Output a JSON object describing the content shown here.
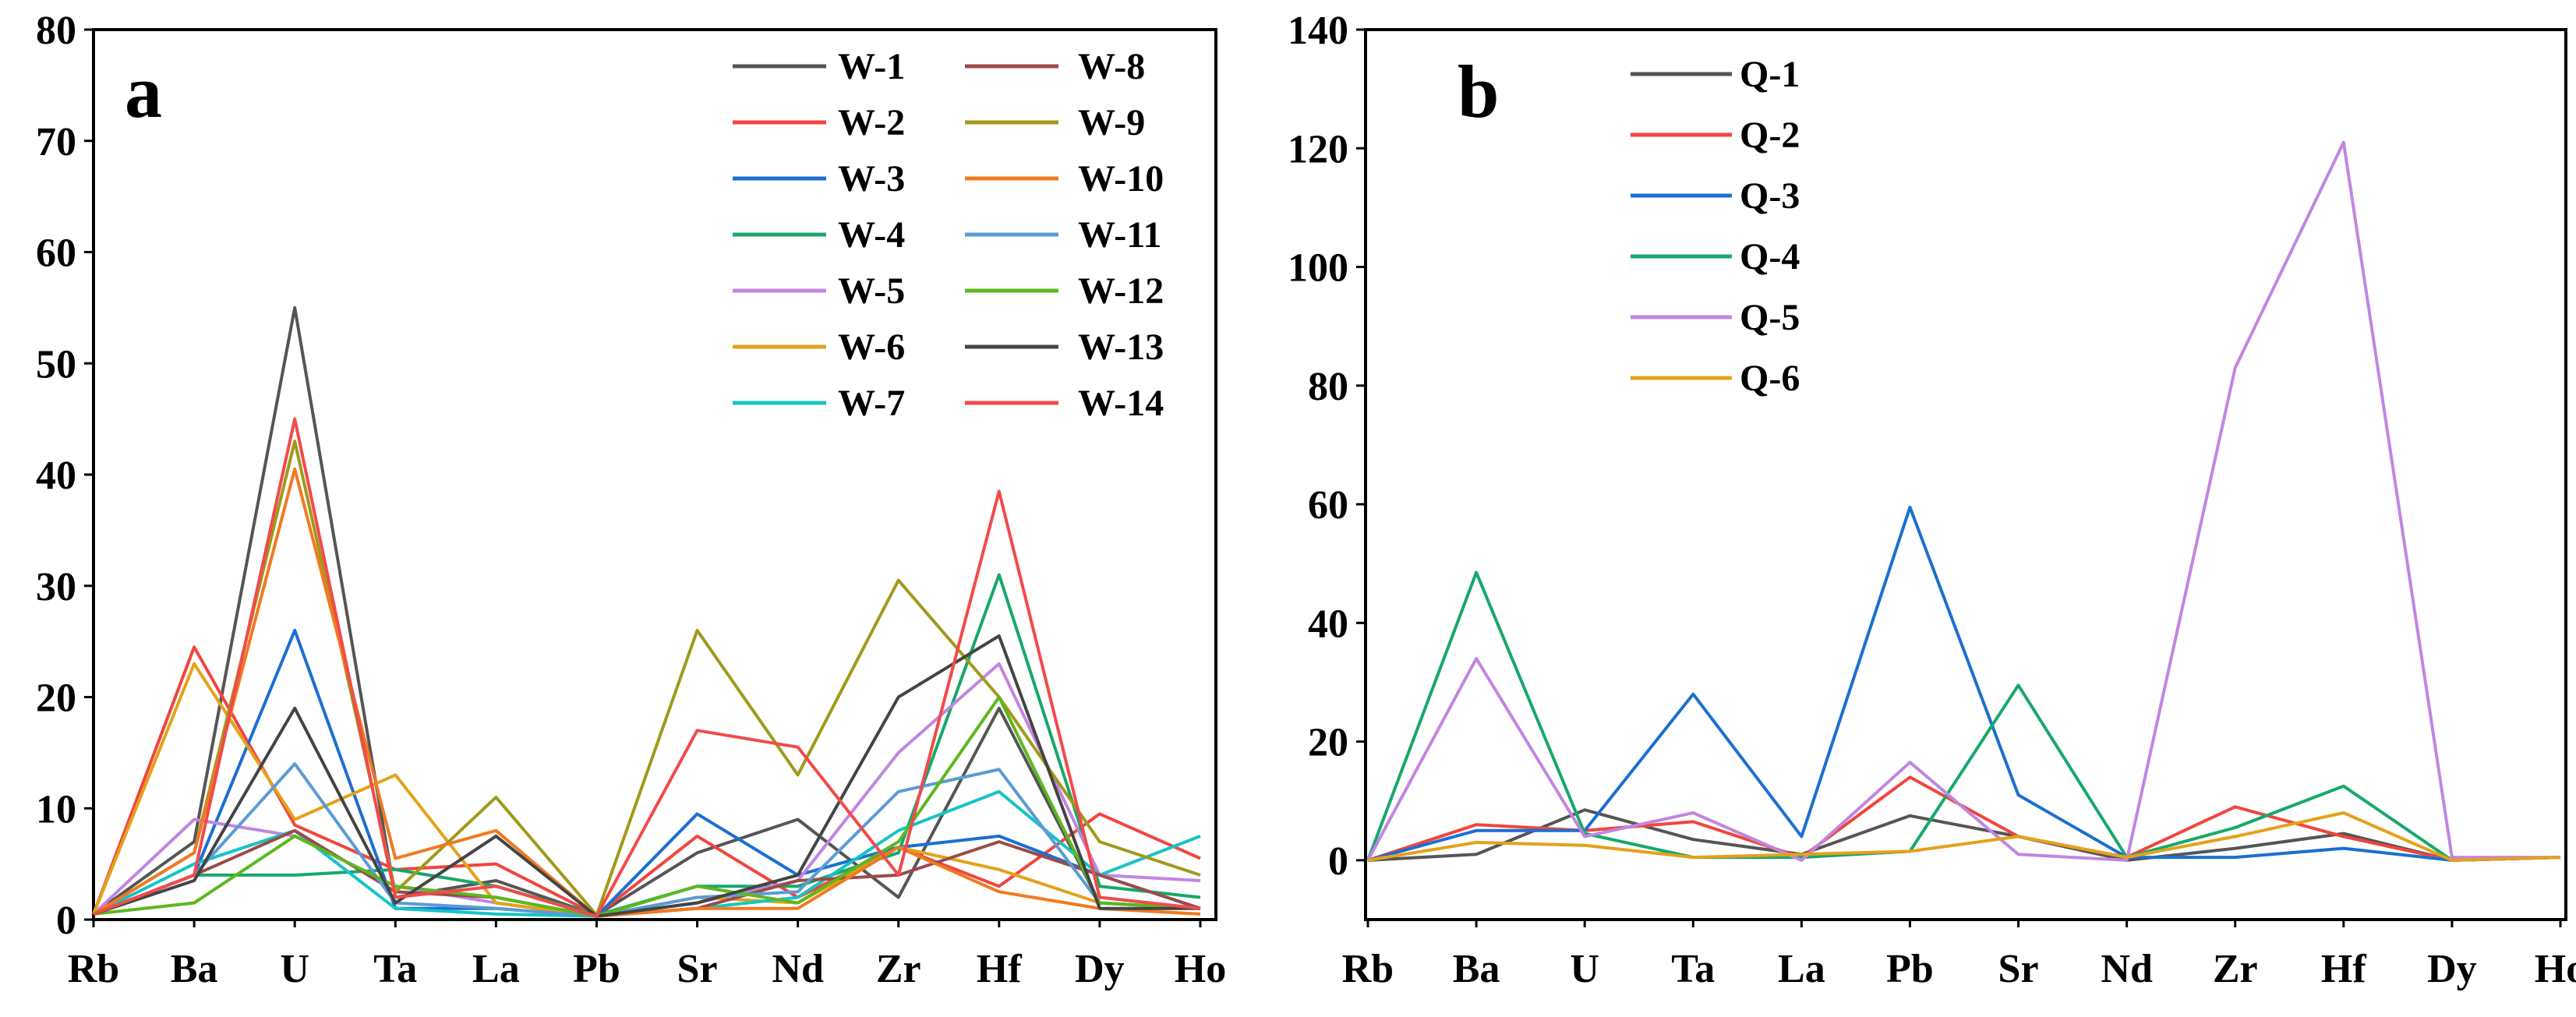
{
  "chart_data": [
    {
      "type": "line",
      "panel_label": "a",
      "categories": [
        "Rb",
        "Ba",
        "U",
        "Ta",
        "La",
        "Pb",
        "Sr",
        "Nd",
        "Zr",
        "Hf",
        "Dy",
        "Ho"
      ],
      "ylim": [
        0,
        80
      ],
      "yticks": [
        0,
        10,
        20,
        30,
        40,
        50,
        60,
        70,
        80
      ],
      "xlabel": "",
      "ylabel": "",
      "title": "",
      "legend_position": "top-right",
      "series": [
        {
          "name": "W-1",
          "color": "#555555",
          "values": [
            0.5,
            7,
            55,
            2,
            3.5,
            0.4,
            6,
            9,
            2,
            19,
            1.5,
            1
          ]
        },
        {
          "name": "W-2",
          "color": "#f0453e",
          "values": [
            0.5,
            24.5,
            8.5,
            4.5,
            5,
            0.4,
            7.5,
            2,
            6.5,
            3,
            9.5,
            5.5
          ]
        },
        {
          "name": "W-3",
          "color": "#1b6fd1",
          "values": [
            0.5,
            4,
            26,
            1,
            1,
            0.3,
            9.5,
            4,
            6.5,
            7.5,
            4,
            1
          ]
        },
        {
          "name": "W-4",
          "color": "#17a86b",
          "values": [
            0.5,
            4,
            4,
            4.5,
            3,
            0.4,
            3,
            3,
            6,
            31,
            3,
            2
          ]
        },
        {
          "name": "W-5",
          "color": "#c285e0",
          "values": [
            0.5,
            9,
            7.5,
            3,
            1.5,
            0.3,
            1.5,
            3.5,
            15,
            23,
            4,
            3.5
          ]
        },
        {
          "name": "W-6",
          "color": "#e3a21a",
          "values": [
            0.5,
            23,
            9,
            13,
            1.5,
            0.3,
            2,
            1.5,
            6.5,
            4.5,
            1.5,
            1
          ]
        },
        {
          "name": "W-7",
          "color": "#16c4c4",
          "values": [
            0.5,
            5,
            8,
            1,
            0.5,
            0.3,
            1,
            2,
            8,
            11.5,
            4,
            7.5
          ]
        },
        {
          "name": "W-8",
          "color": "#9b4a4a",
          "values": [
            0.5,
            4,
            8,
            2.5,
            2,
            0.3,
            1,
            3.5,
            4,
            7,
            4,
            1
          ]
        },
        {
          "name": "W-9",
          "color": "#9f9a1a",
          "values": [
            0.5,
            6,
            43,
            2.5,
            11,
            0.4,
            26,
            13,
            30.5,
            20,
            7,
            4
          ]
        },
        {
          "name": "W-10",
          "color": "#f07a20",
          "values": [
            0.5,
            6,
            40.5,
            5.5,
            8,
            0.3,
            1,
            1,
            6.5,
            2.5,
            1,
            0.5
          ]
        },
        {
          "name": "W-11",
          "color": "#5b9bd5",
          "values": [
            0.5,
            4,
            14,
            1.5,
            1,
            0.3,
            2,
            2.5,
            11.5,
            13.5,
            1.5,
            1
          ]
        },
        {
          "name": "W-12",
          "color": "#5cb81e",
          "values": [
            0.5,
            1.5,
            7.5,
            3,
            2,
            0.3,
            3,
            1.5,
            7,
            20,
            1.5,
            1
          ]
        },
        {
          "name": "W-13",
          "color": "#444444",
          "values": [
            0.5,
            3.5,
            19,
            1.5,
            7.5,
            0.3,
            1.5,
            4,
            20,
            25.5,
            1,
            1
          ]
        },
        {
          "name": "W-14",
          "color": "#f24a4a",
          "values": [
            0.5,
            4,
            45,
            2,
            3,
            0.3,
            17,
            15.5,
            4,
            38.5,
            2,
            1
          ]
        }
      ]
    },
    {
      "type": "line",
      "panel_label": "b",
      "categories": [
        "Rb",
        "Ba",
        "U",
        "Ta",
        "La",
        "Pb",
        "Sr",
        "Nd",
        "Zr",
        "Hf",
        "Dy",
        "Ho"
      ],
      "ylim": [
        -10,
        140
      ],
      "yticks": [
        0,
        20,
        40,
        60,
        80,
        100,
        120,
        140
      ],
      "xlabel": "",
      "ylabel": "",
      "title": "",
      "legend_position": "top-left",
      "series": [
        {
          "name": "Q-1",
          "color": "#555555",
          "values": [
            0,
            1,
            8.5,
            3.5,
            1,
            7.5,
            4,
            0,
            2,
            4.5,
            0,
            0.5
          ]
        },
        {
          "name": "Q-2",
          "color": "#f0453e",
          "values": [
            0,
            6,
            5,
            6.5,
            0.5,
            14,
            4,
            0.5,
            9,
            4,
            0,
            0.5
          ]
        },
        {
          "name": "Q-3",
          "color": "#1b6fd1",
          "values": [
            0,
            5,
            5,
            28,
            4,
            59.5,
            11,
            0.5,
            0.5,
            2,
            0,
            0.5
          ]
        },
        {
          "name": "Q-4",
          "color": "#17a86b",
          "values": [
            0,
            48.5,
            4.5,
            0.5,
            0.5,
            1.5,
            29.5,
            0.5,
            5.5,
            12.5,
            0,
            0.5
          ]
        },
        {
          "name": "Q-5",
          "color": "#c285e0",
          "values": [
            0,
            34,
            4,
            8,
            0,
            16.5,
            1,
            0,
            83,
            121,
            0.5,
            0.5
          ]
        },
        {
          "name": "Q-6",
          "color": "#e3a21a",
          "values": [
            0,
            3,
            2.5,
            0.5,
            1,
            1.5,
            4,
            0.5,
            4,
            8,
            0,
            0.5
          ]
        }
      ]
    }
  ]
}
